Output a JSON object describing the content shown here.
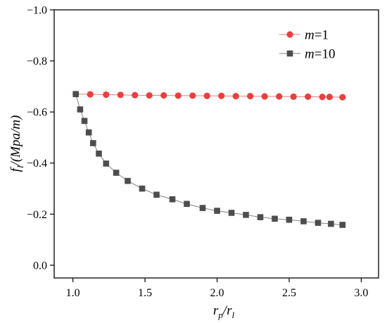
{
  "chart_data": {
    "type": "line",
    "xlabel": {
      "main": "r",
      "sub1": "p",
      "sep": "/r",
      "sub2": "l"
    },
    "ylabel": {
      "main": "f",
      "sub": "l",
      "rest": "/(Mpa/m)"
    },
    "xlim": [
      0.87,
      3.12
    ],
    "ylim": [
      0.05,
      -1.0
    ],
    "x_ticks": [
      1.0,
      1.5,
      2.0,
      2.5,
      3.0
    ],
    "x_tick_labels": [
      "1.0",
      "1.5",
      "2.0",
      "2.5",
      "3.0"
    ],
    "y_ticks": [
      -1.0,
      -0.8,
      -0.6,
      -0.4,
      -0.2,
      0.0
    ],
    "y_tick_labels": [
      "−1.0",
      "−0.8",
      "−0.6",
      "−0.4",
      "−0.2",
      "0.0"
    ],
    "legend_position": "top-right",
    "series": [
      {
        "name": "m=1",
        "legend": {
          "var": "m",
          "rest": "=1"
        },
        "color": "#e8403f",
        "marker": "circle",
        "x": [
          1.02,
          1.12,
          1.23,
          1.33,
          1.43,
          1.53,
          1.63,
          1.73,
          1.83,
          1.93,
          2.03,
          2.13,
          2.23,
          2.33,
          2.43,
          2.53,
          2.63,
          2.73,
          2.78,
          2.87
        ],
        "values": [
          -0.67,
          -0.669,
          -0.668,
          -0.667,
          -0.666,
          -0.665,
          -0.665,
          -0.664,
          -0.664,
          -0.663,
          -0.663,
          -0.662,
          -0.662,
          -0.661,
          -0.661,
          -0.66,
          -0.66,
          -0.659,
          -0.659,
          -0.658
        ]
      },
      {
        "name": "m=10",
        "legend": {
          "var": "m",
          "rest": "=10"
        },
        "color": "#4d4d4d",
        "marker": "square",
        "x": [
          1.02,
          1.05,
          1.08,
          1.11,
          1.14,
          1.18,
          1.23,
          1.3,
          1.38,
          1.48,
          1.58,
          1.69,
          1.79,
          1.9,
          2.0,
          2.1,
          2.2,
          2.3,
          2.4,
          2.5,
          2.6,
          2.7,
          2.79,
          2.87
        ],
        "values": [
          -0.67,
          -0.61,
          -0.565,
          -0.52,
          -0.478,
          -0.437,
          -0.398,
          -0.362,
          -0.33,
          -0.3,
          -0.276,
          -0.258,
          -0.24,
          -0.224,
          -0.213,
          -0.205,
          -0.197,
          -0.188,
          -0.182,
          -0.178,
          -0.172,
          -0.166,
          -0.162,
          -0.158
        ]
      }
    ]
  }
}
